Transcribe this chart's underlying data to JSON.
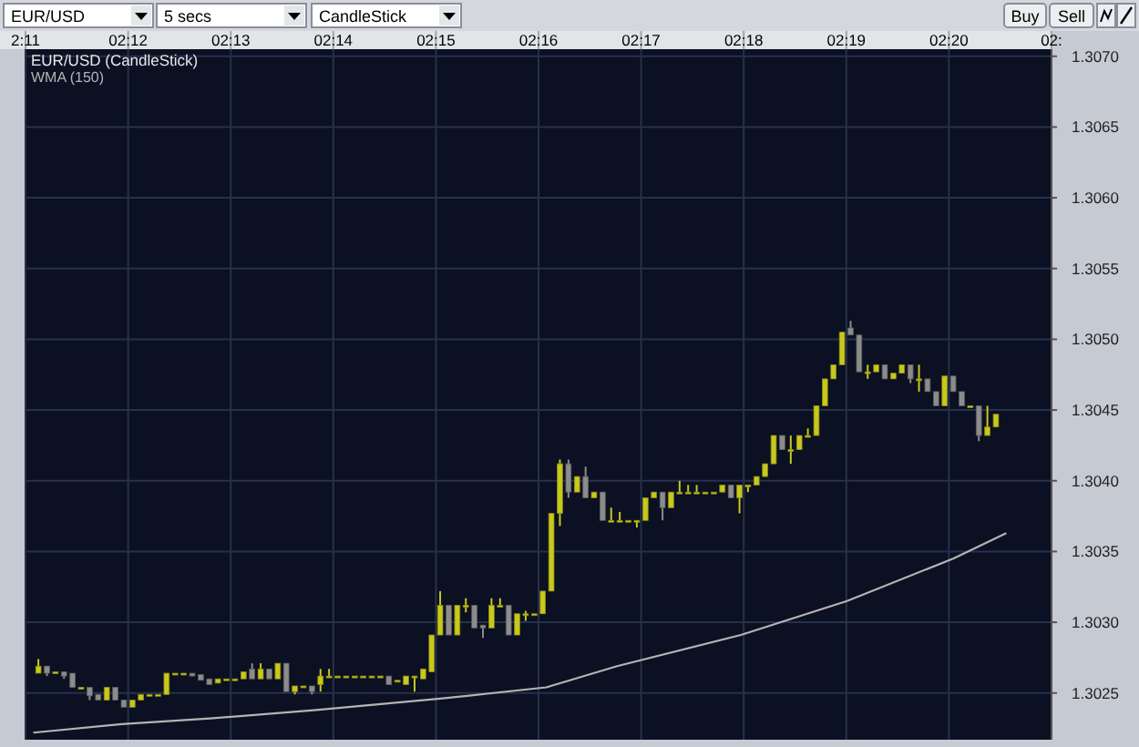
{
  "chart_data": {
    "type": "candlestick",
    "title": "EUR/USD (CandleStick)",
    "legend": "top left",
    "grid": true,
    "annotations": [
      "EUR/USD",
      "5 secs",
      "CandleStick",
      "Buy",
      "Sell"
    ],
    "xlim": [
      2.18333,
      2.35
    ],
    "xticks": [
      {
        "value": 2.18333,
        "label": "2:11"
      },
      {
        "value": 2.2,
        "label": "02:12"
      },
      {
        "value": 2.21667,
        "label": "02:13"
      },
      {
        "value": 2.23333,
        "label": "02:14"
      },
      {
        "value": 2.25,
        "label": "02:15"
      },
      {
        "value": 2.26667,
        "label": "02:16"
      },
      {
        "value": 2.28333,
        "label": "02:17"
      },
      {
        "value": 2.3,
        "label": "02:18"
      },
      {
        "value": 2.31667,
        "label": "02:19"
      },
      {
        "value": 2.33333,
        "label": "02:20"
      },
      {
        "value": 2.35,
        "label": "02:"
      }
    ],
    "ylim": [
      1.30217,
      1.30705
    ],
    "yticks": [
      1.3025,
      {
        "value": 1.303,
        "label": "1.3030"
      },
      1.3035,
      {
        "value": 1.304,
        "label": "1.3040"
      },
      1.3045,
      {
        "value": 1.305,
        "label": "1.3050"
      },
      1.3055,
      {
        "value": 1.306,
        "label": "1.3060"
      },
      1.3065,
      {
        "value": 1.307,
        "label": "1.3070"
      }
    ],
    "x": [
      2.18542,
      2.18681,
      2.18819,
      2.18958,
      2.19097,
      2.19236,
      2.19375,
      2.19514,
      2.19653,
      2.19792,
      2.19931,
      2.20069,
      2.20208,
      2.20347,
      2.20486,
      2.20625,
      2.20764,
      2.20903,
      2.21042,
      2.21181,
      2.21319,
      2.21458,
      2.21597,
      2.21736,
      2.21875,
      2.22014,
      2.22153,
      2.22292,
      2.22431,
      2.22569,
      2.22708,
      2.22847,
      2.22986,
      2.23125,
      2.23264,
      2.23403,
      2.23542,
      2.23681,
      2.23819,
      2.23958,
      2.24097,
      2.24236,
      2.24375,
      2.24514,
      2.24653,
      2.24792,
      2.24931,
      2.25069,
      2.25208,
      2.25347,
      2.25486,
      2.25625,
      2.25764,
      2.25903,
      2.26042,
      2.26181,
      2.26319,
      2.26458,
      2.26597,
      2.26736,
      2.26875,
      2.27014,
      2.27153,
      2.27292,
      2.27431,
      2.27569,
      2.27708,
      2.27847,
      2.27986,
      2.28125,
      2.28264,
      2.28403,
      2.28542,
      2.28681,
      2.28819,
      2.28958,
      2.29097,
      2.29236,
      2.29375,
      2.29514,
      2.29653,
      2.29792,
      2.29931,
      2.30069,
      2.30208,
      2.30347,
      2.30486,
      2.30625,
      2.30764,
      2.30903,
      2.31042,
      2.31181,
      2.31319,
      2.31458,
      2.31597,
      2.31736,
      2.31875,
      2.32014,
      2.32153,
      2.32292,
      2.32431,
      2.32569,
      2.32708,
      2.32847,
      2.32986,
      2.33125,
      2.33264,
      2.33403,
      2.33542,
      2.33681,
      2.33819,
      2.33958,
      2.34097
    ],
    "ohlc": [
      [
        1.30264,
        1.30274,
        1.30264,
        1.30269
      ],
      [
        1.30269,
        1.30269,
        1.30262,
        1.30264
      ],
      [
        1.30265,
        1.30265,
        1.30265,
        1.30265
      ],
      [
        1.30265,
        1.30265,
        1.3026,
        1.30262
      ],
      [
        1.30264,
        1.30264,
        1.30254,
        1.30254
      ],
      [
        1.30254,
        1.30254,
        1.30254,
        1.30254
      ],
      [
        1.30254,
        1.30254,
        1.30245,
        1.30248
      ],
      [
        1.30249,
        1.30249,
        1.30245,
        1.30245
      ],
      [
        1.30245,
        1.30254,
        1.30245,
        1.30254
      ],
      [
        1.30254,
        1.30254,
        1.30245,
        1.30245
      ],
      [
        1.30245,
        1.30245,
        1.3024,
        1.3024
      ],
      [
        1.3024,
        1.30245,
        1.3024,
        1.30245
      ],
      [
        1.30245,
        1.30249,
        1.30245,
        1.30249
      ],
      [
        1.30249,
        1.30249,
        1.30249,
        1.30249
      ],
      [
        1.30249,
        1.30249,
        1.30249,
        1.30249
      ],
      [
        1.30249,
        1.30264,
        1.30249,
        1.30264
      ],
      [
        1.30264,
        1.30264,
        1.30264,
        1.30264
      ],
      [
        1.30264,
        1.30264,
        1.30264,
        1.30264
      ],
      [
        1.30264,
        1.30264,
        1.30262,
        1.30262
      ],
      [
        1.30263,
        1.30263,
        1.30259,
        1.30259
      ],
      [
        1.3026,
        1.3026,
        1.30256,
        1.30256
      ],
      [
        1.30257,
        1.3026,
        1.30257,
        1.3026
      ],
      [
        1.3026,
        1.3026,
        1.3026,
        1.3026
      ],
      [
        1.3026,
        1.3026,
        1.3026,
        1.3026
      ],
      [
        1.3026,
        1.30265,
        1.3026,
        1.30265
      ],
      [
        1.30267,
        1.30271,
        1.3026,
        1.3026
      ],
      [
        1.3026,
        1.30271,
        1.3026,
        1.30267
      ],
      [
        1.30267,
        1.30267,
        1.3026,
        1.3026
      ],
      [
        1.3026,
        1.30271,
        1.3026,
        1.30271
      ],
      [
        1.30271,
        1.30271,
        1.30251,
        1.30251
      ],
      [
        1.30251,
        1.30255,
        1.30249,
        1.30255
      ],
      [
        1.30255,
        1.30255,
        1.30255,
        1.30255
      ],
      [
        1.30255,
        1.30255,
        1.30249,
        1.30251
      ],
      [
        1.30256,
        1.30267,
        1.30251,
        1.30262
      ],
      [
        1.30262,
        1.30267,
        1.30262,
        1.30262
      ],
      [
        1.30262,
        1.30262,
        1.30262,
        1.30262
      ],
      [
        1.30262,
        1.30262,
        1.30262,
        1.30262
      ],
      [
        1.30262,
        1.30262,
        1.30262,
        1.30262
      ],
      [
        1.30262,
        1.30262,
        1.30262,
        1.30262
      ],
      [
        1.30262,
        1.30262,
        1.30262,
        1.30262
      ],
      [
        1.30262,
        1.30262,
        1.30262,
        1.30262
      ],
      [
        1.30262,
        1.30262,
        1.30256,
        1.30256
      ],
      [
        1.30259,
        1.30259,
        1.30259,
        1.30259
      ],
      [
        1.30256,
        1.30262,
        1.30256,
        1.30262
      ],
      [
        1.30262,
        1.30262,
        1.30251,
        1.30262
      ],
      [
        1.3026,
        1.30267,
        1.3026,
        1.30267
      ],
      [
        1.30265,
        1.30291,
        1.30265,
        1.30291
      ],
      [
        1.30291,
        1.30322,
        1.30291,
        1.30312
      ],
      [
        1.30312,
        1.30312,
        1.30291,
        1.30291
      ],
      [
        1.30291,
        1.30312,
        1.30291,
        1.30312
      ],
      [
        1.30312,
        1.30317,
        1.30307,
        1.30312
      ],
      [
        1.30312,
        1.30312,
        1.30296,
        1.30296
      ],
      [
        1.30298,
        1.30298,
        1.30289,
        1.30296
      ],
      [
        1.30296,
        1.30317,
        1.30296,
        1.30312
      ],
      [
        1.30312,
        1.30317,
        1.30312,
        1.30312
      ],
      [
        1.30312,
        1.30312,
        1.30291,
        1.30291
      ],
      [
        1.30291,
        1.30306,
        1.30291,
        1.30306
      ],
      [
        1.30306,
        1.30308,
        1.30301,
        1.30306
      ],
      [
        1.30306,
        1.30306,
        1.30306,
        1.30306
      ],
      [
        1.30306,
        1.30322,
        1.30306,
        1.30322
      ],
      [
        1.30322,
        1.30377,
        1.30322,
        1.30377
      ],
      [
        1.30377,
        1.30415,
        1.30368,
        1.30412
      ],
      [
        1.30412,
        1.30415,
        1.30388,
        1.30392
      ],
      [
        1.30392,
        1.30403,
        1.30392,
        1.30403
      ],
      [
        1.30403,
        1.3041,
        1.30388,
        1.30388
      ],
      [
        1.30388,
        1.30392,
        1.30388,
        1.30392
      ],
      [
        1.30392,
        1.30392,
        1.30372,
        1.30372
      ],
      [
        1.30372,
        1.30381,
        1.30372,
        1.30372
      ],
      [
        1.30372,
        1.30378,
        1.30372,
        1.30372
      ],
      [
        1.30372,
        1.30372,
        1.30372,
        1.30372
      ],
      [
        1.30372,
        1.30372,
        1.30367,
        1.30372
      ],
      [
        1.30372,
        1.30388,
        1.30372,
        1.30388
      ],
      [
        1.30388,
        1.30392,
        1.30388,
        1.30392
      ],
      [
        1.30392,
        1.30392,
        1.30372,
        1.30381
      ],
      [
        1.30381,
        1.30392,
        1.30381,
        1.30392
      ],
      [
        1.30392,
        1.304,
        1.30392,
        1.30392
      ],
      [
        1.30392,
        1.30397,
        1.30392,
        1.30392
      ],
      [
        1.30392,
        1.30397,
        1.30392,
        1.30392
      ],
      [
        1.30392,
        1.30392,
        1.30392,
        1.30392
      ],
      [
        1.30392,
        1.30392,
        1.30392,
        1.30392
      ],
      [
        1.30392,
        1.30397,
        1.30392,
        1.30397
      ],
      [
        1.30397,
        1.30397,
        1.30388,
        1.30388
      ],
      [
        1.30388,
        1.30397,
        1.30377,
        1.30397
      ],
      [
        1.30397,
        1.30397,
        1.30392,
        1.30397
      ],
      [
        1.30397,
        1.30403,
        1.30397,
        1.30403
      ],
      [
        1.30403,
        1.30412,
        1.30403,
        1.30412
      ],
      [
        1.30412,
        1.30432,
        1.30412,
        1.30432
      ],
      [
        1.30432,
        1.30432,
        1.30422,
        1.30422
      ],
      [
        1.30422,
        1.30432,
        1.30412,
        1.30422
      ],
      [
        1.30422,
        1.30432,
        1.30422,
        1.30432
      ],
      [
        1.30432,
        1.30437,
        1.30432,
        1.30432
      ],
      [
        1.30432,
        1.30453,
        1.30432,
        1.30453
      ],
      [
        1.30453,
        1.30472,
        1.30453,
        1.30472
      ],
      [
        1.30472,
        1.30482,
        1.30472,
        1.30482
      ],
      [
        1.30482,
        1.30505,
        1.30482,
        1.30505
      ],
      [
        1.30508,
        1.30513,
        1.30503,
        1.30503
      ],
      [
        1.30503,
        1.30503,
        1.30477,
        1.30477
      ],
      [
        1.30477,
        1.30482,
        1.30472,
        1.30477
      ],
      [
        1.30477,
        1.30482,
        1.30477,
        1.30482
      ],
      [
        1.30482,
        1.30482,
        1.30472,
        1.30472
      ],
      [
        1.30472,
        1.30476,
        1.30472,
        1.30476
      ],
      [
        1.30476,
        1.30482,
        1.30476,
        1.30482
      ],
      [
        1.30482,
        1.30482,
        1.30469,
        1.30472
      ],
      [
        1.30472,
        1.30482,
        1.30463,
        1.30472
      ],
      [
        1.30472,
        1.30472,
        1.30463,
        1.30463
      ],
      [
        1.30463,
        1.30463,
        1.30453,
        1.30453
      ],
      [
        1.30453,
        1.30474,
        1.30453,
        1.30474
      ],
      [
        1.30474,
        1.30474,
        1.30463,
        1.30463
      ],
      [
        1.30463,
        1.30463,
        1.30453,
        1.30453
      ],
      [
        1.30453,
        1.30453,
        1.30453,
        1.30453
      ],
      [
        1.30453,
        1.30453,
        1.30428,
        1.30432
      ],
      [
        1.30432,
        1.30453,
        1.30432,
        1.30438
      ],
      [
        1.30438,
        1.30447,
        1.30438,
        1.30447
      ]
    ],
    "series": [
      {
        "type": "line",
        "name": "WMA (150)",
        "color": "#b4b4b4",
        "x": [
          2.1846,
          2.19896,
          2.21333,
          2.23057,
          2.25069,
          2.26793,
          2.27943,
          2.29954,
          2.31678,
          2.33402,
          2.34265
        ],
        "values": [
          1.30222,
          1.30228,
          1.30232,
          1.30238,
          1.30246,
          1.30254,
          1.30269,
          1.30291,
          1.30315,
          1.30345,
          1.30363
        ]
      }
    ]
  }
}
